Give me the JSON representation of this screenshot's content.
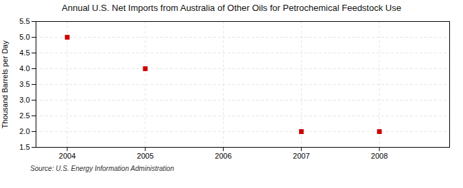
{
  "chart_data": {
    "type": "scatter",
    "title": "Annual U.S. Net Imports from Australia of Other Oils for Petrochemical Feedstock Use",
    "ylabel": "Thousand Barrels per Day",
    "x": [
      2004,
      2005,
      2007,
      2008
    ],
    "values": [
      5.0,
      4.0,
      2.0,
      2.0
    ],
    "color": "#CC0000",
    "marker": "square",
    "xlim": [
      2003.6,
      2008.9
    ],
    "ylim": [
      1.5,
      5.5
    ],
    "xticks": [
      2004,
      2005,
      2006,
      2007,
      2008
    ],
    "yticks": [
      1.5,
      {
        "value": 2.0,
        "label": "2.0"
      },
      2.5,
      {
        "value": 3.0,
        "label": "3.0"
      },
      3.5,
      {
        "value": 4.0,
        "label": "4.0"
      },
      4.5,
      {
        "value": 5.0,
        "label": "5.0"
      },
      5.5
    ],
    "grid": true,
    "annotations": [
      "Source: U.S. Energy Information Administration"
    ]
  }
}
